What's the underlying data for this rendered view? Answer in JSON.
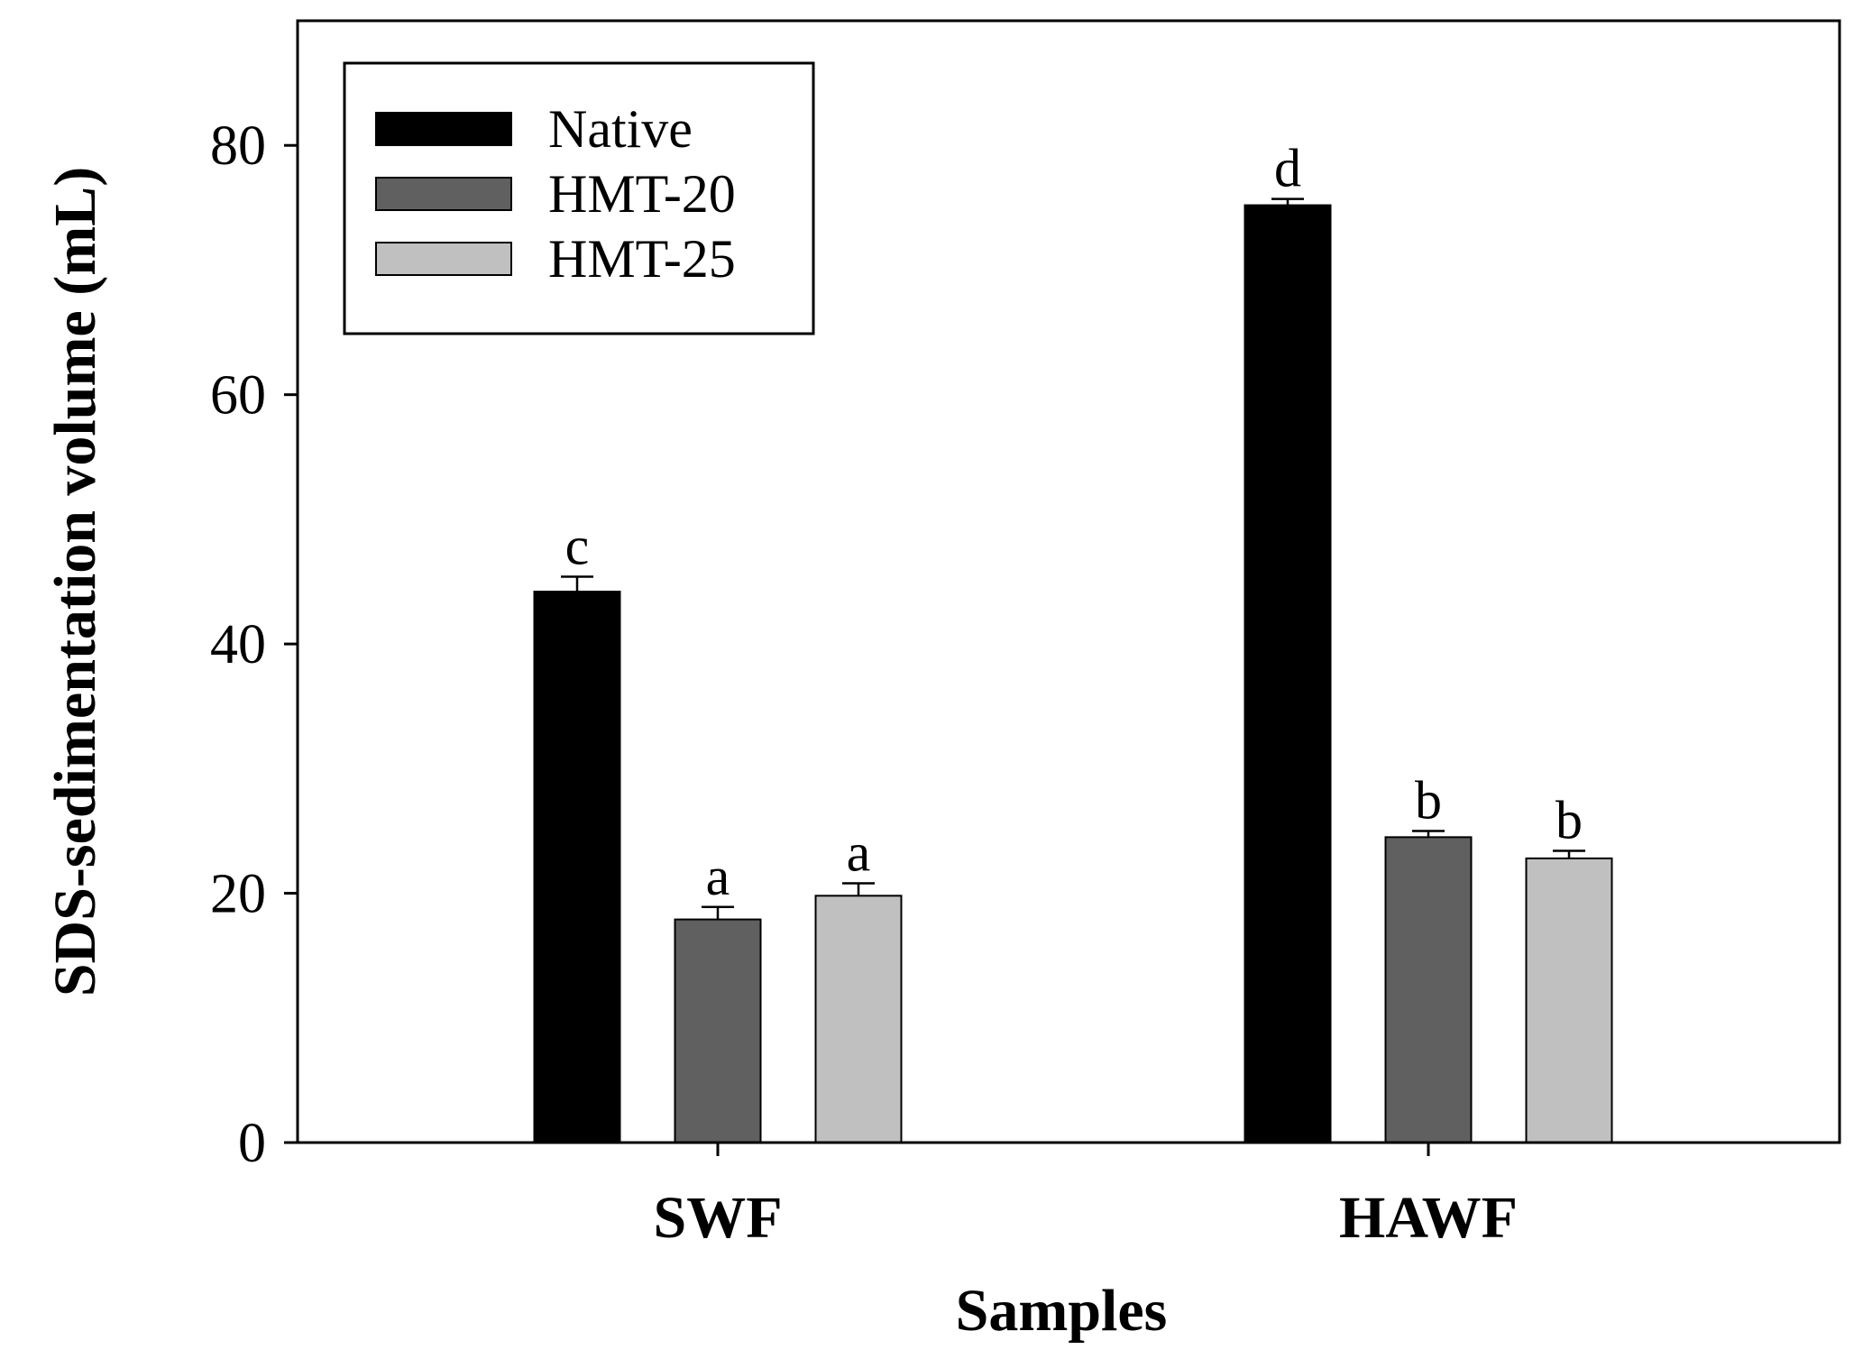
{
  "chart_data": {
    "type": "bar",
    "xlabel": "Samples",
    "ylabel": "SDS-sedimentation volume (mL)",
    "ylim": [
      0,
      90
    ],
    "yticks": [
      0,
      20,
      40,
      60,
      80
    ],
    "categories": [
      "SWF",
      "HAWF"
    ],
    "legend_position": "top-left",
    "series": [
      {
        "name": "Native",
        "color": "#000000",
        "values": [
          44.2,
          75.2
        ],
        "errors": [
          1.2,
          0.5
        ],
        "letters": [
          "c",
          "d"
        ]
      },
      {
        "name": "HMT-20",
        "color": "#606060",
        "values": [
          17.9,
          24.5
        ],
        "errors": [
          1.0,
          0.5
        ],
        "letters": [
          "a",
          "b"
        ]
      },
      {
        "name": "HMT-25",
        "color": "#c0c0c0",
        "values": [
          19.8,
          22.8
        ],
        "errors": [
          1.0,
          0.6
        ],
        "letters": [
          "a",
          "b"
        ]
      }
    ]
  }
}
